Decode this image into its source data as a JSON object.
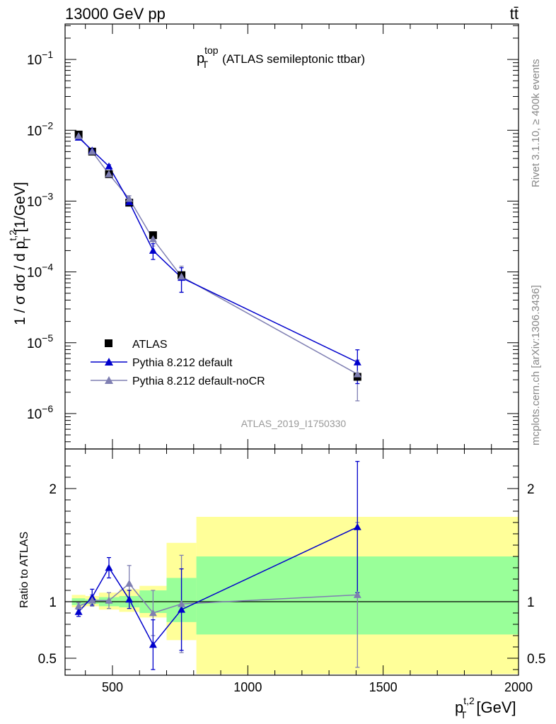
{
  "header": {
    "left": "13000 GeV pp",
    "right": "tt̄"
  },
  "side": {
    "rivet": "Rivet 3.1.10, ≥ 400k events",
    "mcplots": "mcplots.cern.ch [arXiv:1306.3436]"
  },
  "colors": {
    "data": "#000000",
    "series1": "#0000cc",
    "series2": "#7f7fb2",
    "band_inner": "#99ff99",
    "band_outer": "#ffff99"
  },
  "chart_data": {
    "type": "scatter",
    "title_main": "p",
    "title_sup": "top",
    "title_sub": "T",
    "title_rest": "(ATLAS semileptonic ttbar)",
    "watermark": "ATLAS_2019_I1750330",
    "ylabel_top_a": "1 / σ dσ / d p",
    "ylabel_top_sup": "t,2",
    "ylabel_top_sub": "T",
    "ylabel_top_unit": "[1/GeV]",
    "ylabel_ratio": "Ratio to ATLAS",
    "xlabel_p": "p",
    "xlabel_sup": "t,2",
    "xlabel_sub": "T",
    "xlabel_unit": "[GeV]",
    "xlim": [
      325,
      2000
    ],
    "ylim_top_log10": [
      -6.5,
      -0.5
    ],
    "ylim_ratio": [
      0.35,
      2.35
    ],
    "x_ticks": [
      {
        "v": 500,
        "label": "500"
      },
      {
        "v": 1000,
        "label": "1000"
      },
      {
        "v": 1500,
        "label": "1500"
      },
      {
        "v": 2000,
        "label": "2000"
      }
    ],
    "y_ticks_top": [
      {
        "exp": -1,
        "label": "10",
        "sup": "−1"
      },
      {
        "exp": -2,
        "label": "10",
        "sup": "−2"
      },
      {
        "exp": -3,
        "label": "10",
        "sup": "−3"
      },
      {
        "exp": -4,
        "label": "10",
        "sup": "−4"
      },
      {
        "exp": -5,
        "label": "10",
        "sup": "−5"
      },
      {
        "exp": -6,
        "label": "10",
        "sup": "−6"
      }
    ],
    "y_ticks_ratio": [
      {
        "v": 0.5,
        "label": "0.5"
      },
      {
        "v": 1,
        "label": "1"
      },
      {
        "v": 2,
        "label": "2"
      }
    ],
    "bins": [
      {
        "lo": 350,
        "hi": 400
      },
      {
        "lo": 400,
        "hi": 450
      },
      {
        "lo": 450,
        "hi": 525
      },
      {
        "lo": 525,
        "hi": 600
      },
      {
        "lo": 600,
        "hi": 700
      },
      {
        "lo": 700,
        "hi": 810
      },
      {
        "lo": 810,
        "hi": 2000
      }
    ],
    "bands": {
      "inner": [
        [
          0.97,
          1.03
        ],
        [
          0.98,
          1.02
        ],
        [
          0.96,
          1.04
        ],
        [
          0.95,
          1.05
        ],
        [
          0.9,
          1.1
        ],
        [
          0.82,
          1.21
        ],
        [
          0.71,
          1.4
        ]
      ],
      "outer": [
        [
          0.95,
          1.06
        ],
        [
          0.96,
          1.05
        ],
        [
          0.93,
          1.08
        ],
        [
          0.91,
          1.11
        ],
        [
          0.86,
          1.14
        ],
        [
          0.66,
          1.52
        ],
        [
          0.36,
          1.75
        ]
      ]
    },
    "legend": [
      {
        "label": "ATLAS",
        "marker": "square"
      },
      {
        "label": "Pythia 8.212 default",
        "marker": "triangle"
      },
      {
        "label": "Pythia 8.212 default-noCR",
        "marker": "triangle"
      }
    ],
    "series": [
      {
        "name": "ATLAS",
        "x": [
          375,
          425,
          487,
          562,
          650,
          755,
          1405
        ],
        "y": [
          0.0087,
          0.005,
          0.0024,
          0.00095,
          0.00033,
          9e-05,
          3.3e-06
        ],
        "ratio": [
          1,
          1,
          1,
          1,
          1,
          1,
          1
        ],
        "ratio_err": [
          0,
          0,
          0,
          0,
          0,
          0,
          0
        ]
      },
      {
        "name": "Pythia 8.212 default",
        "x": [
          375,
          425,
          487,
          562,
          650,
          755,
          1405
        ],
        "y": [
          0.0079,
          0.0052,
          0.0031,
          0.00097,
          0.0002,
          8.3e-05,
          5.3e-06
        ],
        "ratio": [
          0.91,
          1.04,
          1.3,
          1.02,
          0.62,
          0.93,
          1.66
        ],
        "ratio_err": [
          0.04,
          0.07,
          0.09,
          0.08,
          0.22,
          0.36,
          0.58
        ]
      },
      {
        "name": "Pythia 8.212 default-noCR",
        "x": [
          375,
          425,
          487,
          562,
          650,
          755,
          1405
        ],
        "y": [
          0.0083,
          0.005,
          0.0024,
          0.00108,
          0.00029,
          8.6e-05,
          3.6e-06
        ],
        "ratio": [
          0.96,
          1.01,
          1.01,
          1.16,
          0.9,
          0.98,
          1.06
        ],
        "ratio_err": [
          0.03,
          0.05,
          0.07,
          0.16,
          0.2,
          0.43,
          0.64
        ]
      }
    ]
  }
}
